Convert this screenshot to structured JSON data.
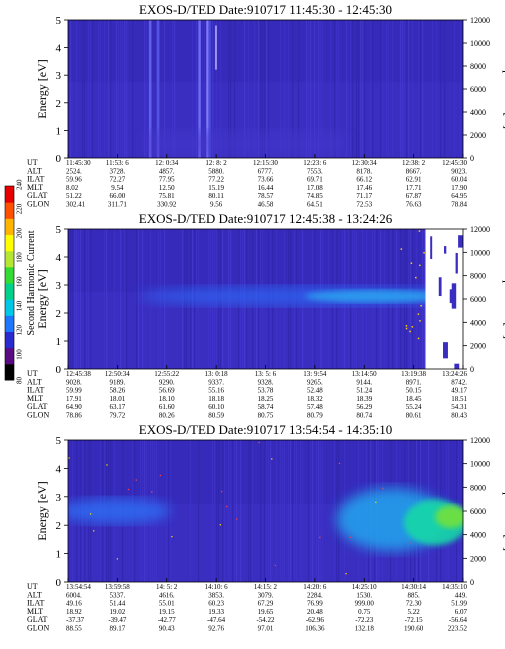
{
  "colorbar": {
    "title": "Second Harmonic Current",
    "ticks": [
      "80",
      "100",
      "120",
      "140",
      "160",
      "180",
      "200",
      "220",
      "240"
    ],
    "colors": [
      "#000000",
      "#5a0a82",
      "#2a2ad2",
      "#1e78ff",
      "#00c8e6",
      "#00d28c",
      "#32dc32",
      "#b4e632",
      "#ffff00",
      "#ffb400",
      "#ff5000",
      "#e60000"
    ]
  },
  "chart_data": [
    {
      "type": "heatmap",
      "title": "EXOS-D/TED   Date:910717   11:45:30 - 12:45:30",
      "ylabel": "Energy [eV]",
      "y2label": "Temperature [K]",
      "yticks": [
        "0",
        "1",
        "2",
        "3",
        "4",
        "5"
      ],
      "y2ticks": [
        "0",
        "2000",
        "4000",
        "6000",
        "8000",
        "10000",
        "12000"
      ],
      "ylim": [
        0,
        5
      ],
      "y2lim": [
        0,
        12000
      ],
      "row_labels": [
        "UT",
        "ALT",
        "ILAT",
        "MLT",
        "GLAT",
        "GLON"
      ],
      "columns": [
        [
          "11:45:30",
          "2524.",
          "59.96",
          "8.02",
          "51.22",
          "302.41"
        ],
        [
          "11:53: 6",
          "3728.",
          "72.27",
          "9.54",
          "66.00",
          "311.71"
        ],
        [
          "12: 0:34",
          "4857.",
          "77.95",
          "12.50",
          "75.81",
          "330.92"
        ],
        [
          "12: 8: 2",
          "5880.",
          "77.22",
          "15.19",
          "80.11",
          "9.56"
        ],
        [
          "12:15:30",
          "6777.",
          "73.66",
          "16.44",
          "78.57",
          "46.58"
        ],
        [
          "12:23: 6",
          "7553.",
          "69.71",
          "17.08",
          "74.85",
          "64.51"
        ],
        [
          "12:30:34",
          "8178.",
          "66.12",
          "17.46",
          "71.17",
          "72.53"
        ],
        [
          "12:38: 2",
          "8667.",
          "62.91",
          "17.71",
          "67.87",
          "76.63"
        ],
        [
          "12:45:30",
          "9023.",
          "60.04",
          "17.90",
          "64.95",
          "78.84"
        ]
      ],
      "features": [
        {
          "description": "uniform dark-blue background",
          "energy_range": [
            0,
            5
          ]
        },
        {
          "description": "bright vertical streak",
          "time": "12: 8: 2"
        }
      ]
    },
    {
      "type": "heatmap",
      "title": "EXOS-D/TED   Date:910717   12:45:38 - 13:24:26",
      "ylabel": "Energy [eV]",
      "y2label": "Temperature [K]",
      "yticks": [
        "0",
        "1",
        "2",
        "3",
        "4",
        "5"
      ],
      "y2ticks": [
        "0",
        "2000",
        "4000",
        "6000",
        "8000",
        "10000",
        "12000"
      ],
      "ylim": [
        0,
        5
      ],
      "y2lim": [
        0,
        12000
      ],
      "row_labels": [
        "UT",
        "ALT",
        "ILAT",
        "MLT",
        "GLAT",
        "GLON"
      ],
      "columns": [
        [
          "12:45:38",
          "9028.",
          "59.99",
          "17.91",
          "64.90",
          "78.86"
        ],
        [
          "12:50:34",
          "9189.",
          "58.26",
          "18.01",
          "63.17",
          "79.72"
        ],
        [
          "12:55:22",
          "9290.",
          "56.69",
          "18.10",
          "61.60",
          "80.26"
        ],
        [
          "13: 0:18",
          "9337.",
          "55.16",
          "18.18",
          "60.10",
          "80.59"
        ],
        [
          "13: 5: 6",
          "9328.",
          "53.78",
          "18.25",
          "58.74",
          "80.75"
        ],
        [
          "13: 9:54",
          "9265.",
          "52.48",
          "18.32",
          "57.48",
          "80.79"
        ],
        [
          "13:14:50",
          "9144.",
          "51.24",
          "18.39",
          "56.29",
          "80.74"
        ],
        [
          "13:19:38",
          "8971.",
          "50.15",
          "18.45",
          "55.24",
          "80.61"
        ],
        [
          "13:24:26",
          "8742.",
          "49.17",
          "18.51",
          "54.31",
          "80.43"
        ]
      ],
      "features": [
        {
          "description": "enhanced band near 2.5 eV",
          "energy_range": [
            2,
            3
          ]
        }
      ]
    },
    {
      "type": "heatmap",
      "title": "EXOS-D/TED   Date:910717   13:54:54 - 14:35:10",
      "ylabel": "Energy [eV]",
      "y2label": "Temperature [K]",
      "yticks": [
        "0",
        "1",
        "2",
        "3",
        "4",
        "5"
      ],
      "y2ticks": [
        "0",
        "2000",
        "4000",
        "6000",
        "8000",
        "10000",
        "12000"
      ],
      "ylim": [
        0,
        5
      ],
      "y2lim": [
        0,
        12000
      ],
      "row_labels": [
        "UT",
        "ALT",
        "ILAT",
        "MLT",
        "GLAT",
        "GLON"
      ],
      "columns": [
        [
          "13:54:54",
          "6004.",
          "49.16",
          "18.92",
          "-37.37",
          "88.55"
        ],
        [
          "13:59:58",
          "5337.",
          "51.44",
          "19.02",
          "-39.47",
          "89.17"
        ],
        [
          "14: 5: 2",
          "4616.",
          "55.01",
          "19.15",
          "-42.77",
          "90.43"
        ],
        [
          "14:10: 6",
          "3853.",
          "60.23",
          "19.33",
          "-47.64",
          "92.76"
        ],
        [
          "14:15: 2",
          "3079.",
          "67.29",
          "19.65",
          "-54.22",
          "97.01"
        ],
        [
          "14:20: 6",
          "2284.",
          "76.99",
          "20.48",
          "-62.96",
          "106.36"
        ],
        [
          "14:25:10",
          "1530.",
          "999.00",
          "0.75",
          "-72.23",
          "132.18"
        ],
        [
          "14:30:14",
          "885.",
          "72.30",
          "5.22",
          "-72.15",
          "190.60"
        ],
        [
          "14:35:10",
          "449.",
          "51.99",
          "6.07",
          "-56.64",
          "223.52"
        ]
      ],
      "features": [
        {
          "description": "blue band near 2.5 eV",
          "energy_range": [
            2,
            3
          ]
        },
        {
          "description": "bright green/cyan region",
          "time": "14:30:14"
        }
      ]
    }
  ]
}
